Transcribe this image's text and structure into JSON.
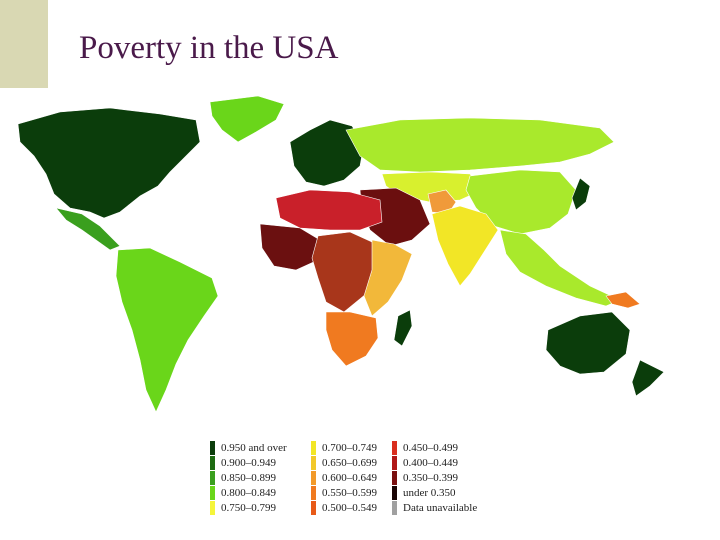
{
  "slide": {
    "title": "Poverty in the USA"
  },
  "colors": {
    "accent_bar": "#d9d8b3",
    "title": "#4a1a4a",
    "ocean": "#ffffff"
  },
  "map": {
    "type": "choropleth world map",
    "regions": [
      {
        "name": "North America",
        "color": "#0b3d0b"
      },
      {
        "name": "Greenland",
        "color": "#0b3d0b"
      },
      {
        "name": "Central America",
        "color": "#3a9f1e"
      },
      {
        "name": "South America",
        "color": "#6ad61a"
      },
      {
        "name": "Western Europe",
        "color": "#0b3d0b"
      },
      {
        "name": "Russia",
        "color": "#6ad61a"
      },
      {
        "name": "Central Asia",
        "color": "#a9e92c"
      },
      {
        "name": "China",
        "color": "#d8f02e"
      },
      {
        "name": "Middle East",
        "color": "#a9e92c"
      },
      {
        "name": "Afghanistan",
        "color": "#6b0f0f"
      },
      {
        "name": "South Asia",
        "color": "#f09a3a"
      },
      {
        "name": "Southeast Asia",
        "color": "#f2e626"
      },
      {
        "name": "North Africa",
        "color": "#a9e92c"
      },
      {
        "name": "West Africa",
        "color": "#c9202a"
      },
      {
        "name": "Central Africa",
        "color": "#6b1010"
      },
      {
        "name": "East Africa",
        "color": "#a8361b"
      },
      {
        "name": "Southern Africa",
        "color": "#f2b83a"
      },
      {
        "name": "Madagascar",
        "color": "#f07a20"
      },
      {
        "name": "Japan",
        "color": "#0b3d0b"
      },
      {
        "name": "Australia",
        "color": "#0b3d0b"
      },
      {
        "name": "New Zealand",
        "color": "#0b3d0b"
      },
      {
        "name": "Papua New Guinea",
        "color": "#f07a20"
      }
    ]
  },
  "legend": {
    "columns": [
      [
        {
          "label": "0.950 and over",
          "color": "#0b3d0b"
        },
        {
          "label": "0.900–0.949",
          "color": "#1e6b12"
        },
        {
          "label": "0.850–0.899",
          "color": "#3a9f1e"
        },
        {
          "label": "0.800–0.849",
          "color": "#6ad61a"
        },
        {
          "label": "0.750–0.799",
          "color": "#f5f53a"
        }
      ],
      [
        {
          "label": "0.700–0.749",
          "color": "#f2e626"
        },
        {
          "label": "0.650–0.699",
          "color": "#f2c82a"
        },
        {
          "label": "0.600–0.649",
          "color": "#f29a2a"
        },
        {
          "label": "0.550–0.599",
          "color": "#f07a20"
        },
        {
          "label": "0.500–0.549",
          "color": "#e85a18"
        }
      ],
      [
        {
          "label": "0.450–0.499",
          "color": "#d92e1e"
        },
        {
          "label": "0.400–0.449",
          "color": "#b01818"
        },
        {
          "label": "0.350–0.399",
          "color": "#7a1010"
        },
        {
          "label": "under 0.350",
          "color": "#1a0505"
        },
        {
          "label": "Data unavailable",
          "color": "#a0a0a0"
        }
      ]
    ]
  }
}
